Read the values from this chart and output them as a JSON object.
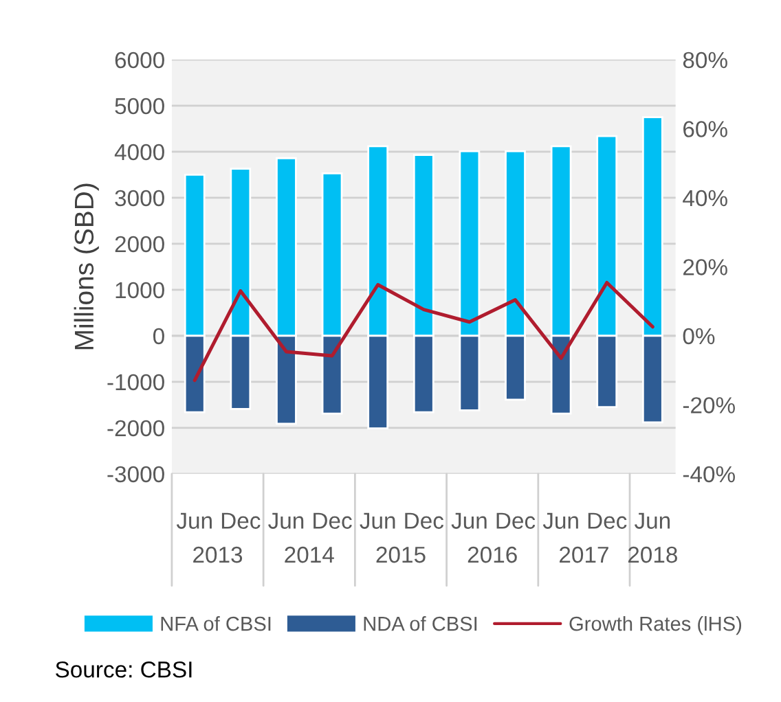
{
  "chart_data": {
    "type": "bar",
    "ylabel": "Millions (SBD)",
    "stacked": true,
    "categories": [
      "Jun",
      "Dec",
      "Jun",
      "Dec",
      "Jun",
      "Dec",
      "Jun",
      "Dec",
      "Jun",
      "Dec",
      "Jun"
    ],
    "series": [
      {
        "name": "NFA of CBSI",
        "color": "#00bff3",
        "values": [
          3500,
          3630,
          3860,
          3530,
          4120,
          3930,
          4010,
          4010,
          4120,
          4340,
          4750
        ]
      },
      {
        "name": "NDA of CBSI",
        "color": "#2e5c94",
        "values": [
          -1660,
          -1590,
          -1910,
          -1690,
          -2010,
          -1660,
          -1620,
          -1390,
          -1690,
          -1550,
          -1880
        ]
      },
      {
        "name": "Growth Rates (lHS)",
        "type": "line",
        "axis": "y2",
        "color": "#b01c2e",
        "values": [
          -12.9,
          13,
          -4.6,
          -5.8,
          14.8,
          7.6,
          4,
          10.4,
          -6.5,
          15.4,
          2.6
        ]
      }
    ],
    "ylim": [
      -3000,
      6000
    ],
    "yticks": [
      -3000,
      -2000,
      -1000,
      0,
      1000,
      2000,
      3000,
      4000,
      5000,
      6000
    ],
    "y2lim": [
      -40,
      80
    ],
    "y2ticks": [
      {
        "value": -40,
        "label": "-40%"
      },
      {
        "value": -20,
        "label": "-20%"
      },
      {
        "value": 0,
        "label": "0%"
      },
      {
        "value": 20,
        "label": "20%"
      },
      {
        "value": 40,
        "label": "40%"
      },
      {
        "value": 60,
        "label": "60%"
      },
      {
        "value": 80,
        "label": "80%"
      }
    ],
    "grid": "y",
    "legend": "bottom",
    "marker": "none",
    "line_style": "solid",
    "annotations": [
      "2013",
      "2014",
      "2015",
      "2016",
      "2017",
      "2018",
      "Source: CBSI"
    ]
  }
}
